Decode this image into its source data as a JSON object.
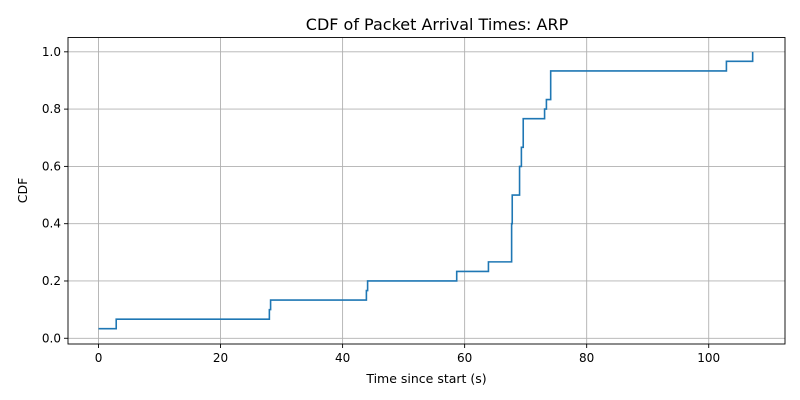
{
  "chart_data": {
    "type": "line",
    "title": "CDF of Packet Arrival Times: ARP",
    "xlabel": "Time since start (s)",
    "ylabel": "CDF",
    "xlim": [
      -5,
      112.5
    ],
    "ylim": [
      -0.02,
      1.05
    ],
    "xticks": [
      0,
      20,
      40,
      60,
      80,
      100
    ],
    "yticks": [
      0.0,
      0.2,
      0.4,
      0.6,
      0.8,
      1.0
    ],
    "xtick_labels": [
      "0",
      "20",
      "40",
      "60",
      "80",
      "100"
    ],
    "ytick_labels": [
      "0.0",
      "0.2",
      "0.4",
      "0.6",
      "0.8",
      "1.0"
    ],
    "grid": true,
    "step": "post",
    "series": [
      {
        "color": "#1f77b4",
        "x": [
          0.0,
          2.9,
          28.0,
          28.2,
          43.9,
          44.1,
          58.7,
          63.9,
          67.7,
          67.8,
          69.0,
          69.3,
          69.6,
          73.1,
          73.4,
          74.1,
          102.9,
          107.2
        ],
        "y": [
          0.0333,
          0.0667,
          0.1,
          0.1333,
          0.1667,
          0.2,
          0.2333,
          0.2667,
          0.4,
          0.5,
          0.6,
          0.6667,
          0.7667,
          0.8,
          0.8333,
          0.9333,
          0.9667,
          1.0
        ]
      }
    ]
  }
}
